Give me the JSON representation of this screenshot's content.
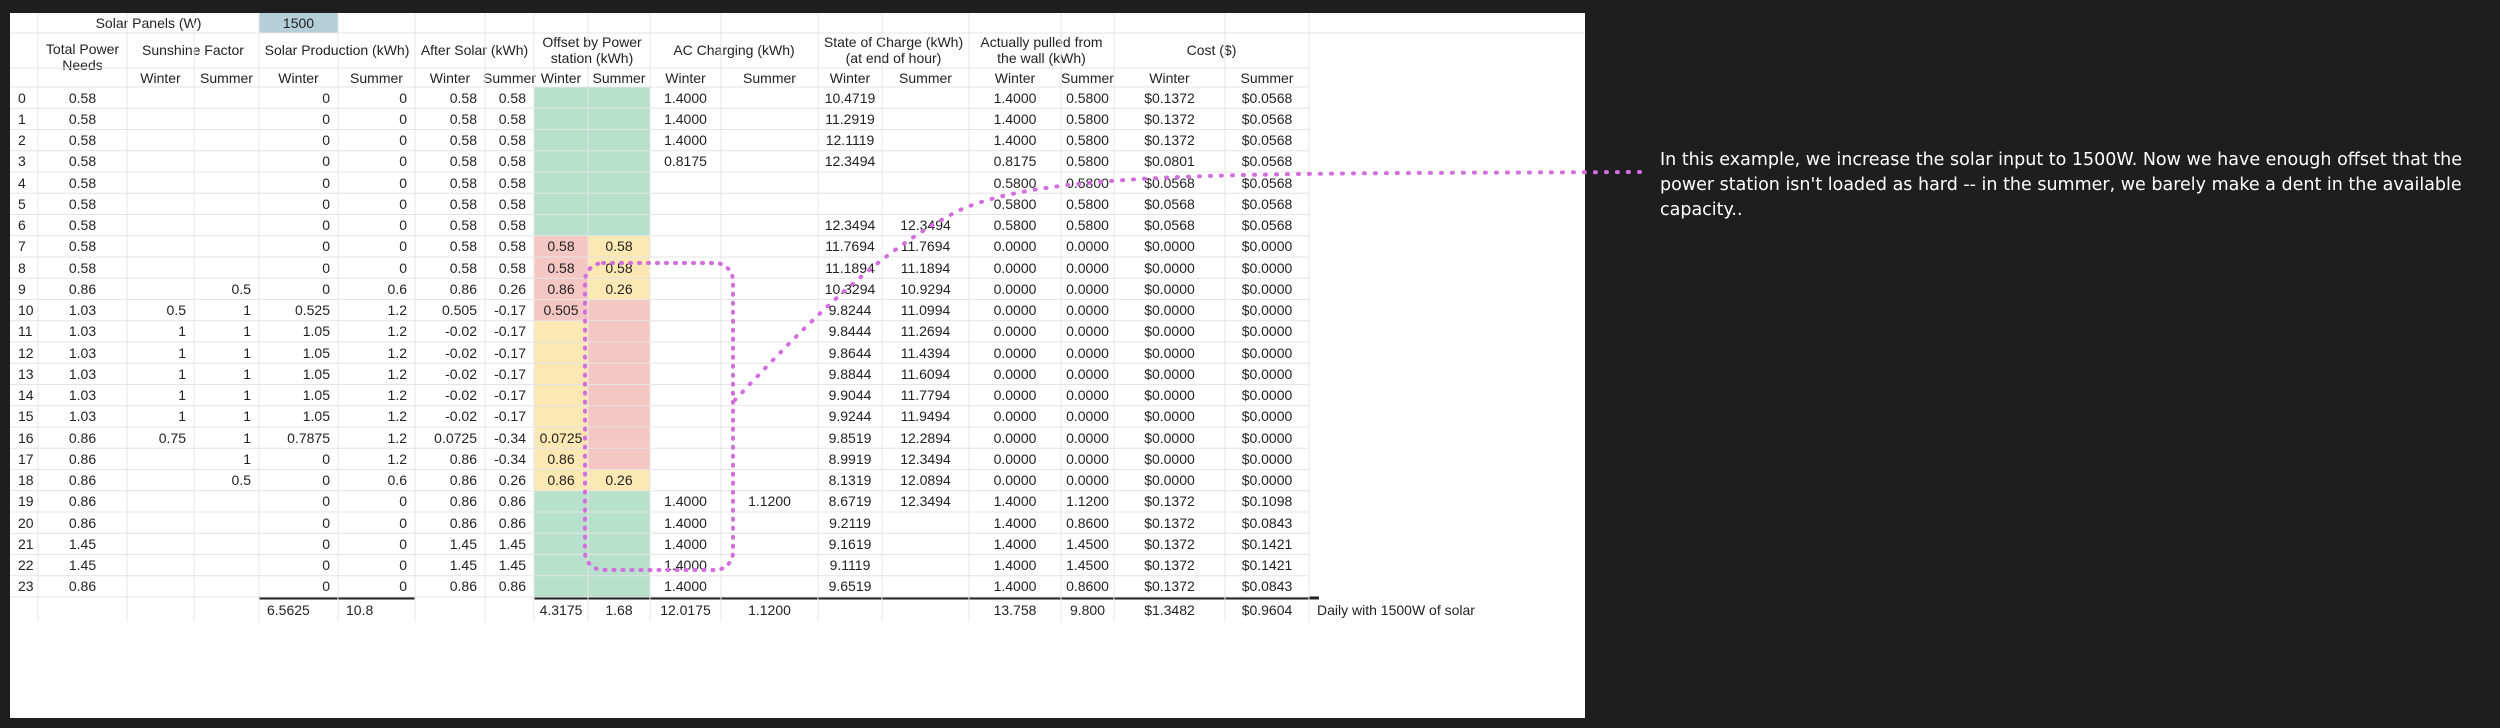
{
  "title_row": {
    "label": "Solar Panels (W)",
    "value": "1500"
  },
  "groups": [
    {
      "label": "Total Power Needs",
      "c0": 1,
      "span": 1
    },
    {
      "label": "Sunshine Factor",
      "c0": 2,
      "span": 2
    },
    {
      "label": "Solar Production (kWh)",
      "c0": 4,
      "span": 2
    },
    {
      "label": "After Solar (kWh)",
      "c0": 6,
      "span": 2
    },
    {
      "label": "Offset by Power station (kWh)",
      "c0": 8,
      "span": 2
    },
    {
      "label": "AC Charging (kWh)",
      "c0": 10,
      "span": 2
    },
    {
      "label": "State of Charge (kWh) (at end of hour)",
      "c0": 12,
      "span": 2
    },
    {
      "label": "Actually pulled from the wall (kWh)",
      "c0": 14,
      "span": 2
    },
    {
      "label": "Cost ($)",
      "c0": 16,
      "span": 2
    }
  ],
  "subheaders": [
    "",
    "",
    "Winter",
    "Summer",
    "Winter",
    "Summer",
    "Winter",
    "Summer",
    "Winter",
    "Summer",
    "Winter",
    "Summer",
    "Winter",
    "Summer",
    "Winter",
    "Summer",
    "Winter",
    "Summer"
  ],
  "rows": [
    [
      "0",
      "0.58",
      "",
      "",
      "0",
      "0",
      "0.58",
      "0.58",
      "",
      "",
      "1.4000",
      "",
      "10.4719",
      "",
      "1.4000",
      "0.5800",
      "$0.1372",
      "$0.0568"
    ],
    [
      "1",
      "0.58",
      "",
      "",
      "0",
      "0",
      "0.58",
      "0.58",
      "",
      "",
      "1.4000",
      "",
      "11.2919",
      "",
      "1.4000",
      "0.5800",
      "$0.1372",
      "$0.0568"
    ],
    [
      "2",
      "0.58",
      "",
      "",
      "0",
      "0",
      "0.58",
      "0.58",
      "",
      "",
      "1.4000",
      "",
      "12.1119",
      "",
      "1.4000",
      "0.5800",
      "$0.1372",
      "$0.0568"
    ],
    [
      "3",
      "0.58",
      "",
      "",
      "0",
      "0",
      "0.58",
      "0.58",
      "",
      "",
      "0.8175",
      "",
      "12.3494",
      "",
      "0.8175",
      "0.5800",
      "$0.0801",
      "$0.0568"
    ],
    [
      "4",
      "0.58",
      "",
      "",
      "0",
      "0",
      "0.58",
      "0.58",
      "",
      "",
      "",
      "",
      "",
      "",
      "0.5800",
      "0.5800",
      "$0.0568",
      "$0.0568"
    ],
    [
      "5",
      "0.58",
      "",
      "",
      "0",
      "0",
      "0.58",
      "0.58",
      "",
      "",
      "",
      "",
      "",
      "",
      "0.5800",
      "0.5800",
      "$0.0568",
      "$0.0568"
    ],
    [
      "6",
      "0.58",
      "",
      "",
      "0",
      "0",
      "0.58",
      "0.58",
      "",
      "",
      "",
      "",
      "12.3494",
      "12.3494",
      "0.5800",
      "0.5800",
      "$0.0568",
      "$0.0568"
    ],
    [
      "7",
      "0.58",
      "",
      "",
      "0",
      "0",
      "0.58",
      "0.58",
      "0.58",
      "0.58",
      "",
      "",
      "11.7694",
      "11.7694",
      "0.0000",
      "0.0000",
      "$0.0000",
      "$0.0000"
    ],
    [
      "8",
      "0.58",
      "",
      "",
      "0",
      "0",
      "0.58",
      "0.58",
      "0.58",
      "0.58",
      "",
      "",
      "11.1894",
      "11.1894",
      "0.0000",
      "0.0000",
      "$0.0000",
      "$0.0000"
    ],
    [
      "9",
      "0.86",
      "",
      "0.5",
      "0",
      "0.6",
      "0.86",
      "0.26",
      "0.86",
      "0.26",
      "",
      "",
      "10.3294",
      "10.9294",
      "0.0000",
      "0.0000",
      "$0.0000",
      "$0.0000"
    ],
    [
      "10",
      "1.03",
      "0.5",
      "1",
      "0.525",
      "1.2",
      "0.505",
      "-0.17",
      "0.505",
      "",
      "",
      "",
      "9.8244",
      "11.0994",
      "0.0000",
      "0.0000",
      "$0.0000",
      "$0.0000"
    ],
    [
      "11",
      "1.03",
      "1",
      "1",
      "1.05",
      "1.2",
      "-0.02",
      "-0.17",
      "",
      "",
      "",
      "",
      "9.8444",
      "11.2694",
      "0.0000",
      "0.0000",
      "$0.0000",
      "$0.0000"
    ],
    [
      "12",
      "1.03",
      "1",
      "1",
      "1.05",
      "1.2",
      "-0.02",
      "-0.17",
      "",
      "",
      "",
      "",
      "9.8644",
      "11.4394",
      "0.0000",
      "0.0000",
      "$0.0000",
      "$0.0000"
    ],
    [
      "13",
      "1.03",
      "1",
      "1",
      "1.05",
      "1.2",
      "-0.02",
      "-0.17",
      "",
      "",
      "",
      "",
      "9.8844",
      "11.6094",
      "0.0000",
      "0.0000",
      "$0.0000",
      "$0.0000"
    ],
    [
      "14",
      "1.03",
      "1",
      "1",
      "1.05",
      "1.2",
      "-0.02",
      "-0.17",
      "",
      "",
      "",
      "",
      "9.9044",
      "11.7794",
      "0.0000",
      "0.0000",
      "$0.0000",
      "$0.0000"
    ],
    [
      "15",
      "1.03",
      "1",
      "1",
      "1.05",
      "1.2",
      "-0.02",
      "-0.17",
      "",
      "",
      "",
      "",
      "9.9244",
      "11.9494",
      "0.0000",
      "0.0000",
      "$0.0000",
      "$0.0000"
    ],
    [
      "16",
      "0.86",
      "0.75",
      "1",
      "0.7875",
      "1.2",
      "0.0725",
      "-0.34",
      "0.0725",
      "",
      "",
      "",
      "9.8519",
      "12.2894",
      "0.0000",
      "0.0000",
      "$0.0000",
      "$0.0000"
    ],
    [
      "17",
      "0.86",
      "",
      "1",
      "0",
      "1.2",
      "0.86",
      "-0.34",
      "0.86",
      "",
      "",
      "",
      "8.9919",
      "12.3494",
      "0.0000",
      "0.0000",
      "$0.0000",
      "$0.0000"
    ],
    [
      "18",
      "0.86",
      "",
      "0.5",
      "0",
      "0.6",
      "0.86",
      "0.26",
      "0.86",
      "0.26",
      "",
      "",
      "8.1319",
      "12.0894",
      "0.0000",
      "0.0000",
      "$0.0000",
      "$0.0000"
    ],
    [
      "19",
      "0.86",
      "",
      "",
      "0",
      "0",
      "0.86",
      "0.86",
      "",
      "",
      "1.4000",
      "1.1200",
      "8.6719",
      "12.3494",
      "1.4000",
      "1.1200",
      "$0.1372",
      "$0.1098"
    ],
    [
      "20",
      "0.86",
      "",
      "",
      "0",
      "0",
      "0.86",
      "0.86",
      "",
      "",
      "1.4000",
      "",
      "9.2119",
      "",
      "1.4000",
      "0.8600",
      "$0.1372",
      "$0.0843"
    ],
    [
      "21",
      "1.45",
      "",
      "",
      "0",
      "0",
      "1.45",
      "1.45",
      "",
      "",
      "1.4000",
      "",
      "9.1619",
      "",
      "1.4000",
      "1.4500",
      "$0.1372",
      "$0.1421"
    ],
    [
      "22",
      "1.45",
      "",
      "",
      "0",
      "0",
      "1.45",
      "1.45",
      "",
      "",
      "1.4000",
      "",
      "9.1119",
      "",
      "1.4000",
      "1.4500",
      "$0.1372",
      "$0.1421"
    ],
    [
      "23",
      "0.86",
      "",
      "",
      "0",
      "0",
      "0.86",
      "0.86",
      "",
      "",
      "1.4000",
      "",
      "9.6519",
      "",
      "1.4000",
      "0.8600",
      "$0.1372",
      "$0.0843"
    ]
  ],
  "totals": [
    "",
    "",
    "",
    "",
    "6.5625",
    "10.8",
    "",
    "",
    "4.3175",
    "1.68",
    "12.0175",
    "1.1200",
    "",
    "",
    "13.758",
    "9.800",
    "$1.3482",
    "$0.9604"
  ],
  "footer_note": "Daily with 1500W of solar",
  "annotation": "In this example, we increase the solar input to 1500W. Now we have enough offset that the power station isn't loaded as hard -- in the summer, we barely make a dent in the available capacity..",
  "colors": {
    "offset_green": "#b7e1cd",
    "offset_red": "#f4c7c3",
    "offset_yellow": "#fce8b2",
    "input_teal": "#b4cfd7",
    "highlight_green_text": "#2f8a57",
    "annotation_dots": "#d46ee0"
  }
}
